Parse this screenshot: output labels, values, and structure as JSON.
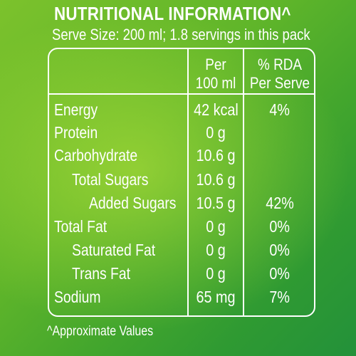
{
  "header": {
    "title": "NUTRITIONAL INFORMATION^",
    "serve_size": "Serve Size: 200 ml; 1.8 servings in this pack"
  },
  "table": {
    "columns": [
      {
        "line1": "Per",
        "line2": "100 ml"
      },
      {
        "line1": "% RDA",
        "line2": "Per Serve"
      }
    ],
    "rows": [
      {
        "label": "Energy",
        "per_100ml": "42 kcal",
        "rda": "4%",
        "indent": 0
      },
      {
        "label": "Protein",
        "per_100ml": "0 g",
        "rda": "",
        "indent": 0
      },
      {
        "label": "Carbohydrate",
        "per_100ml": "10.6 g",
        "rda": "",
        "indent": 0
      },
      {
        "label": "Total Sugars",
        "per_100ml": "10.6 g",
        "rda": "",
        "indent": 1
      },
      {
        "label": "Added Sugars",
        "per_100ml": "10.5 g",
        "rda": "42%",
        "indent": 2
      },
      {
        "label": "Total Fat",
        "per_100ml": "0 g",
        "rda": "0%",
        "indent": 0
      },
      {
        "label": "Saturated Fat",
        "per_100ml": "0 g",
        "rda": "0%",
        "indent": 1
      },
      {
        "label": "Trans Fat",
        "per_100ml": "0 g",
        "rda": "0%",
        "indent": 1
      },
      {
        "label": "Sodium",
        "per_100ml": "65 mg",
        "rda": "7%",
        "indent": 0
      }
    ]
  },
  "footer": {
    "note": "^Approximate Values"
  }
}
